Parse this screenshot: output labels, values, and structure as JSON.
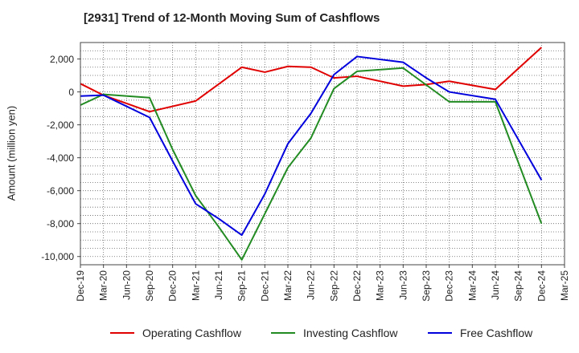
{
  "chart_data": {
    "type": "line",
    "title": "[2931]  Trend of 12-Month Moving Sum of Cashflows",
    "xlabel": "",
    "ylabel": "Amount (million yen)",
    "ylim": [
      -10500,
      3000
    ],
    "yticks": [
      2000,
      0,
      -2000,
      -4000,
      -6000,
      -8000,
      -10000
    ],
    "ytick_labels": [
      "2,000",
      "0",
      "-2,000",
      "-4,000",
      "-6,000",
      "-8,000",
      "-10,000"
    ],
    "categories": [
      "Dec-19",
      "Mar-20",
      "Jun-20",
      "Sep-20",
      "Dec-20",
      "Mar-21",
      "Jun-21",
      "Sep-21",
      "Dec-21",
      "Mar-22",
      "Jun-22",
      "Sep-22",
      "Dec-22",
      "Mar-23",
      "Jun-23",
      "Sep-23",
      "Dec-23",
      "Mar-24",
      "Jun-24",
      "Sep-24",
      "Dec-24",
      "Mar-25"
    ],
    "grid": true,
    "legend_position": "bottom",
    "series": [
      {
        "name": "Operating Cashflow",
        "color": "#e00000",
        "values": [
          500,
          -200,
          null,
          -1200,
          null,
          -550,
          null,
          1500,
          1200,
          1550,
          1500,
          850,
          950,
          null,
          350,
          450,
          650,
          null,
          150,
          null,
          2700,
          null
        ]
      },
      {
        "name": "Investing Cashflow",
        "color": "#228b22",
        "values": [
          -800,
          -150,
          null,
          -350,
          -3500,
          -6300,
          -8200,
          -10200,
          -7400,
          -4600,
          -2800,
          200,
          1250,
          null,
          1450,
          null,
          -600,
          null,
          -600,
          null,
          -8000,
          null
        ]
      },
      {
        "name": "Free Cashflow",
        "color": "#0000dd",
        "values": [
          -250,
          -200,
          null,
          -1550,
          -4200,
          -6800,
          -7700,
          -8700,
          -6200,
          -3150,
          -1300,
          1050,
          2150,
          null,
          1800,
          850,
          0,
          null,
          -450,
          null,
          -5350,
          null
        ]
      }
    ]
  }
}
